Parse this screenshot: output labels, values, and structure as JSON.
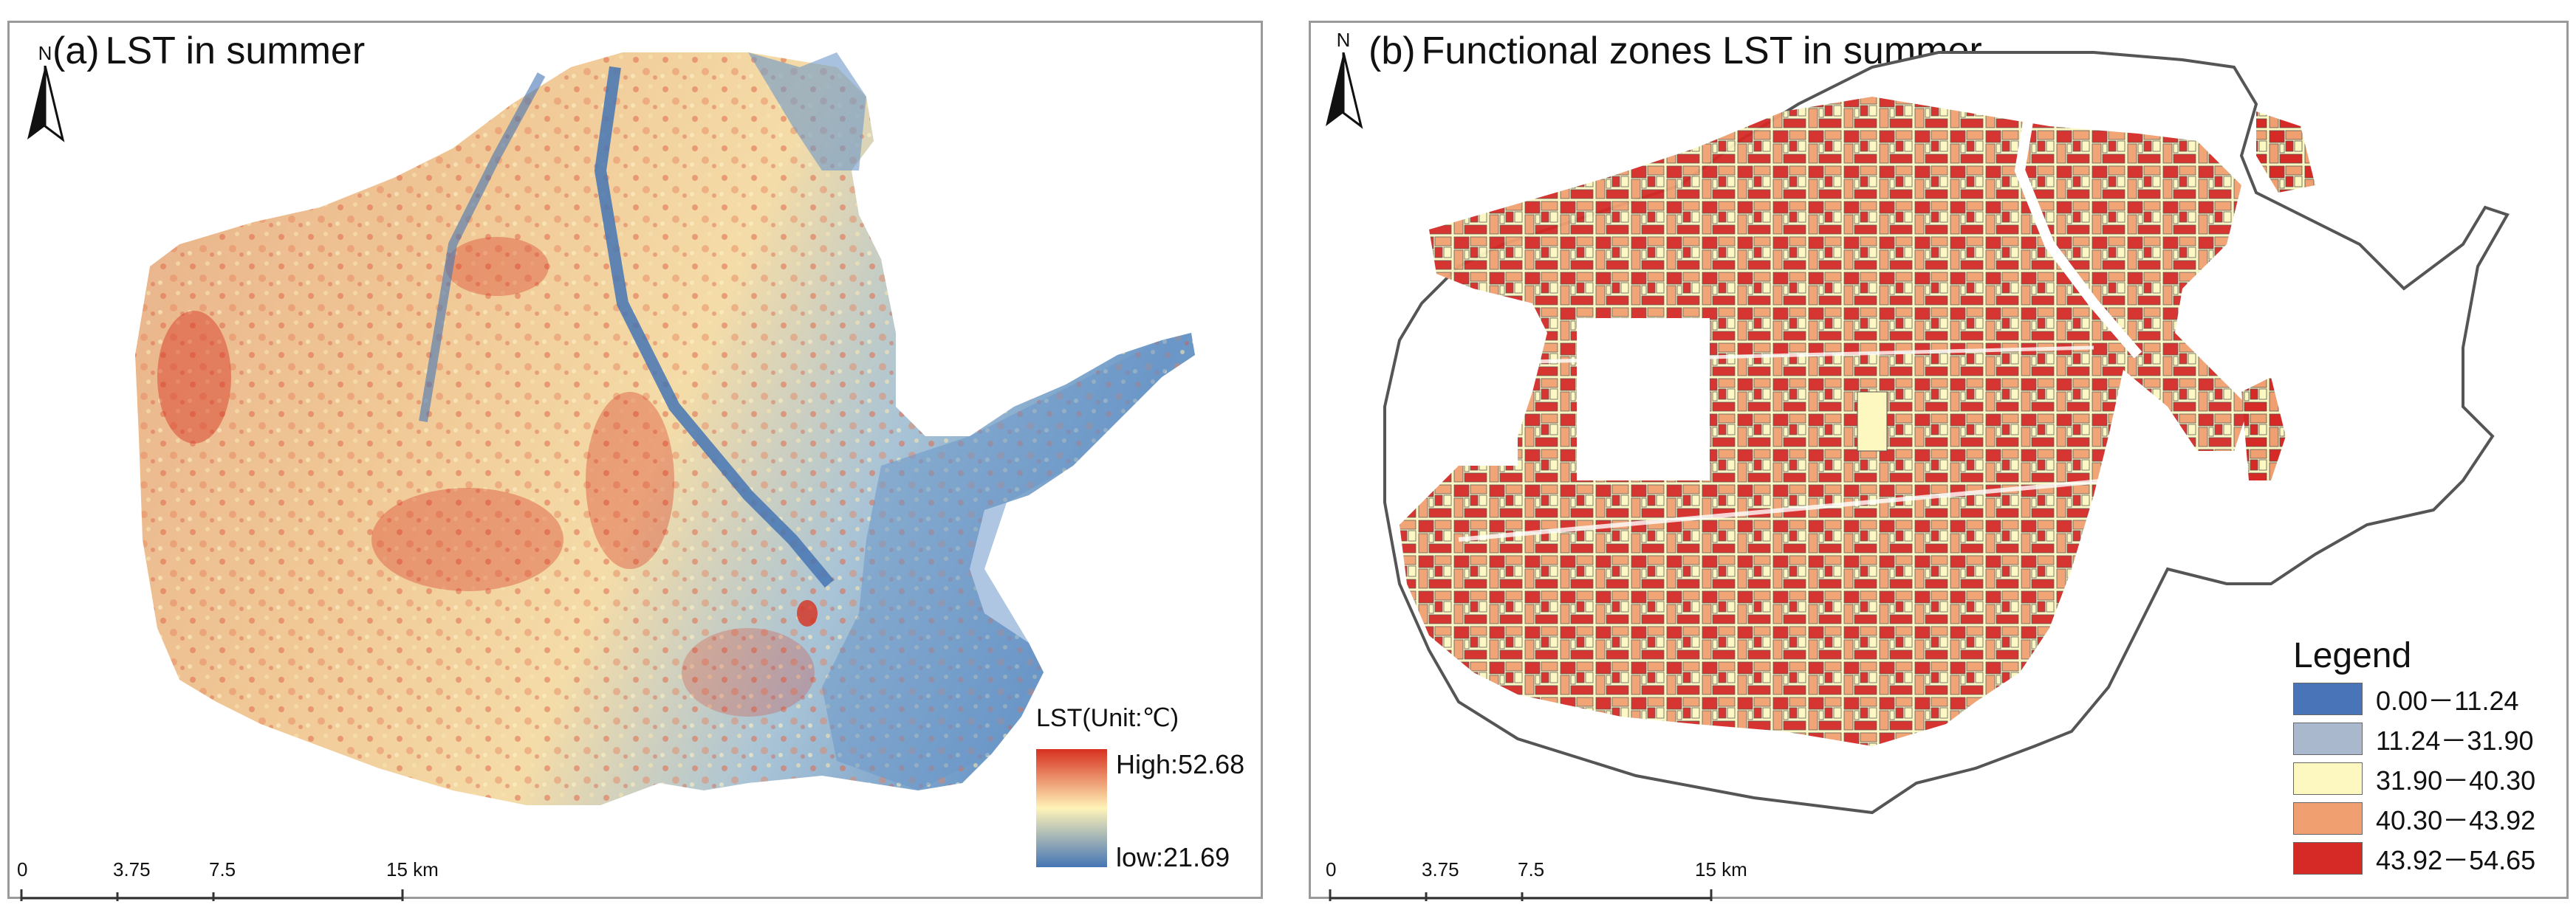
{
  "panel_a": {
    "tag": "(a)",
    "title": "LST in summer",
    "north_label": "N",
    "legend": {
      "title": "LST(Unit:℃)",
      "high": "High:52.68",
      "low": "low:21.69",
      "high_color": "#d7301f",
      "mid_color": "#fff3b8",
      "low_color": "#4575b4"
    },
    "scale": {
      "ticks": [
        "0",
        "3.75",
        "7.5",
        "15 km"
      ]
    }
  },
  "panel_b": {
    "tag": "(b)",
    "title": "Functional zones LST in summer",
    "north_label": "N",
    "legend": {
      "title": "Legend",
      "classes": [
        {
          "label": "0.00－11.24",
          "color": "#4a74b8"
        },
        {
          "label": "11.24－31.90",
          "color": "#a9b8cc"
        },
        {
          "label": "31.90－40.30",
          "color": "#fdf7c0"
        },
        {
          "label": "40.30－43.92",
          "color": "#f0a070"
        },
        {
          "label": "43.92－54.65",
          "color": "#d52a26"
        }
      ]
    },
    "scale": {
      "ticks": [
        "0",
        "3.75",
        "7.5",
        "15 km"
      ]
    }
  }
}
